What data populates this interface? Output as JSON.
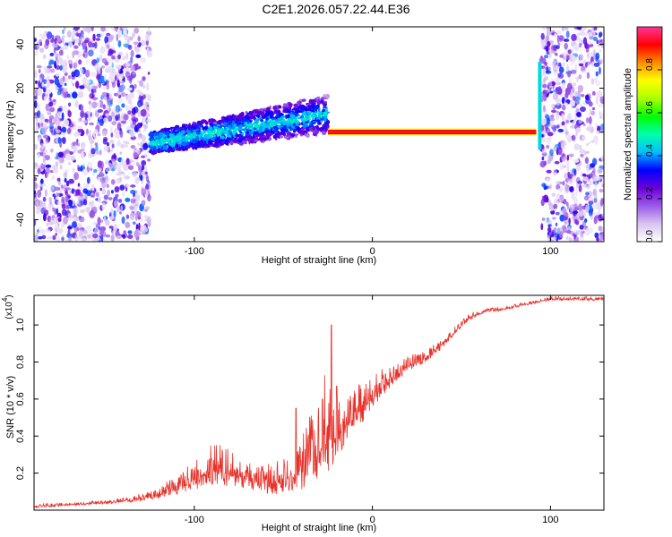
{
  "figure_title": "C2E1.2026.057.22.44.E36",
  "chart_data": [
    {
      "type": "heatmap",
      "title": "C2E1.2026.057.22.44.E36",
      "xlabel": "Height of straight line (km)",
      "ylabel": "Frequency (Hz)",
      "xlim": [
        -190,
        130
      ],
      "ylim": [
        -50,
        48
      ],
      "x_ticks": [
        -100,
        0,
        100
      ],
      "y_ticks": [
        -40,
        -20,
        0,
        20,
        40
      ],
      "colorbar": {
        "label": "Normalized spectral amplitude",
        "range": [
          0,
          1
        ],
        "ticks": [
          0.0,
          0.2,
          0.4,
          0.6,
          0.8
        ],
        "tick_labels": [
          "0.0",
          "0.2",
          "0.4",
          "0.6",
          "0.8"
        ],
        "colormap": [
          "#ffffff",
          "#d8c4f0",
          "#9b59e8",
          "#6a00d8",
          "#0000ff",
          "#00bfff",
          "#00ffaa",
          "#00ff00",
          "#aaff00",
          "#ffff00",
          "#ff8c00",
          "#ff0000",
          "#ff3399"
        ]
      },
      "regions": [
        {
          "name": "noise-left",
          "x_range": [
            -190,
            -125
          ],
          "f_range": [
            -50,
            48
          ],
          "amplitude": 0.2
        },
        {
          "name": "signal-band",
          "x_range": [
            -125,
            -25
          ],
          "f_center": [
            -5,
            8
          ],
          "f_width": 8,
          "amplitude": 0.35
        },
        {
          "name": "tone-line",
          "x_range": [
            -25,
            92
          ],
          "f": 0,
          "amplitude": 0.95
        },
        {
          "name": "noise-right",
          "x_range": [
            95,
            130
          ],
          "f_range": [
            -50,
            48
          ],
          "amplitude": 0.2
        }
      ]
    },
    {
      "type": "line",
      "xlabel": "Height of straight line (km)",
      "ylabel": "SNR (10 * v/v)",
      "y_scale_label": "(x10",
      "y_scale_exp": "4",
      "xlim": [
        -190,
        130
      ],
      "ylim": [
        0,
        1.16
      ],
      "x_ticks": [
        -100,
        0,
        100
      ],
      "y_ticks": [
        0.2,
        0.4,
        0.6,
        0.8,
        1.0
      ],
      "y_tick_labels": [
        "0.2",
        "0.4",
        "0.6",
        "0.8",
        "1.0"
      ],
      "series": [
        {
          "name": "SNR",
          "color": "#e8312a",
          "x": [
            -190,
            -170,
            -150,
            -130,
            -120,
            -110,
            -100,
            -90,
            -80,
            -70,
            -60,
            -50,
            -40,
            -35,
            -30,
            -25,
            -22,
            -20,
            -15,
            -10,
            -5,
            0,
            5,
            10,
            15,
            20,
            25,
            30,
            35,
            40,
            45,
            50,
            55,
            60,
            65,
            70,
            80,
            90,
            100,
            110,
            120,
            130
          ],
          "y": [
            0.02,
            0.03,
            0.04,
            0.06,
            0.08,
            0.12,
            0.16,
            0.22,
            0.2,
            0.16,
            0.14,
            0.15,
            0.2,
            0.26,
            0.32,
            0.4,
            0.35,
            0.42,
            0.46,
            0.5,
            0.56,
            0.6,
            0.66,
            0.7,
            0.74,
            0.78,
            0.8,
            0.82,
            0.86,
            0.9,
            0.95,
            1.0,
            1.04,
            1.06,
            1.08,
            1.08,
            1.1,
            1.12,
            1.14,
            1.14,
            1.14,
            1.14
          ],
          "noise_amplitude": [
            0.01,
            0.01,
            0.01,
            0.02,
            0.03,
            0.06,
            0.08,
            0.12,
            0.1,
            0.08,
            0.08,
            0.1,
            0.14,
            0.2,
            0.24,
            0.3,
            0.26,
            0.22,
            0.16,
            0.14,
            0.12,
            0.1,
            0.08,
            0.06,
            0.05,
            0.04,
            0.04,
            0.03,
            0.03,
            0.03,
            0.02,
            0.02,
            0.02,
            0.01,
            0.01,
            0.01,
            0.01,
            0.01,
            0.01,
            0.01,
            0.01,
            0.01
          ],
          "spikes": [
            {
              "x": -43,
              "y": 0.55
            },
            {
              "x": -23,
              "y": 1.0
            },
            {
              "x": -20,
              "y": 0.67
            },
            {
              "x": -28,
              "y": 0.6
            }
          ]
        }
      ]
    }
  ]
}
